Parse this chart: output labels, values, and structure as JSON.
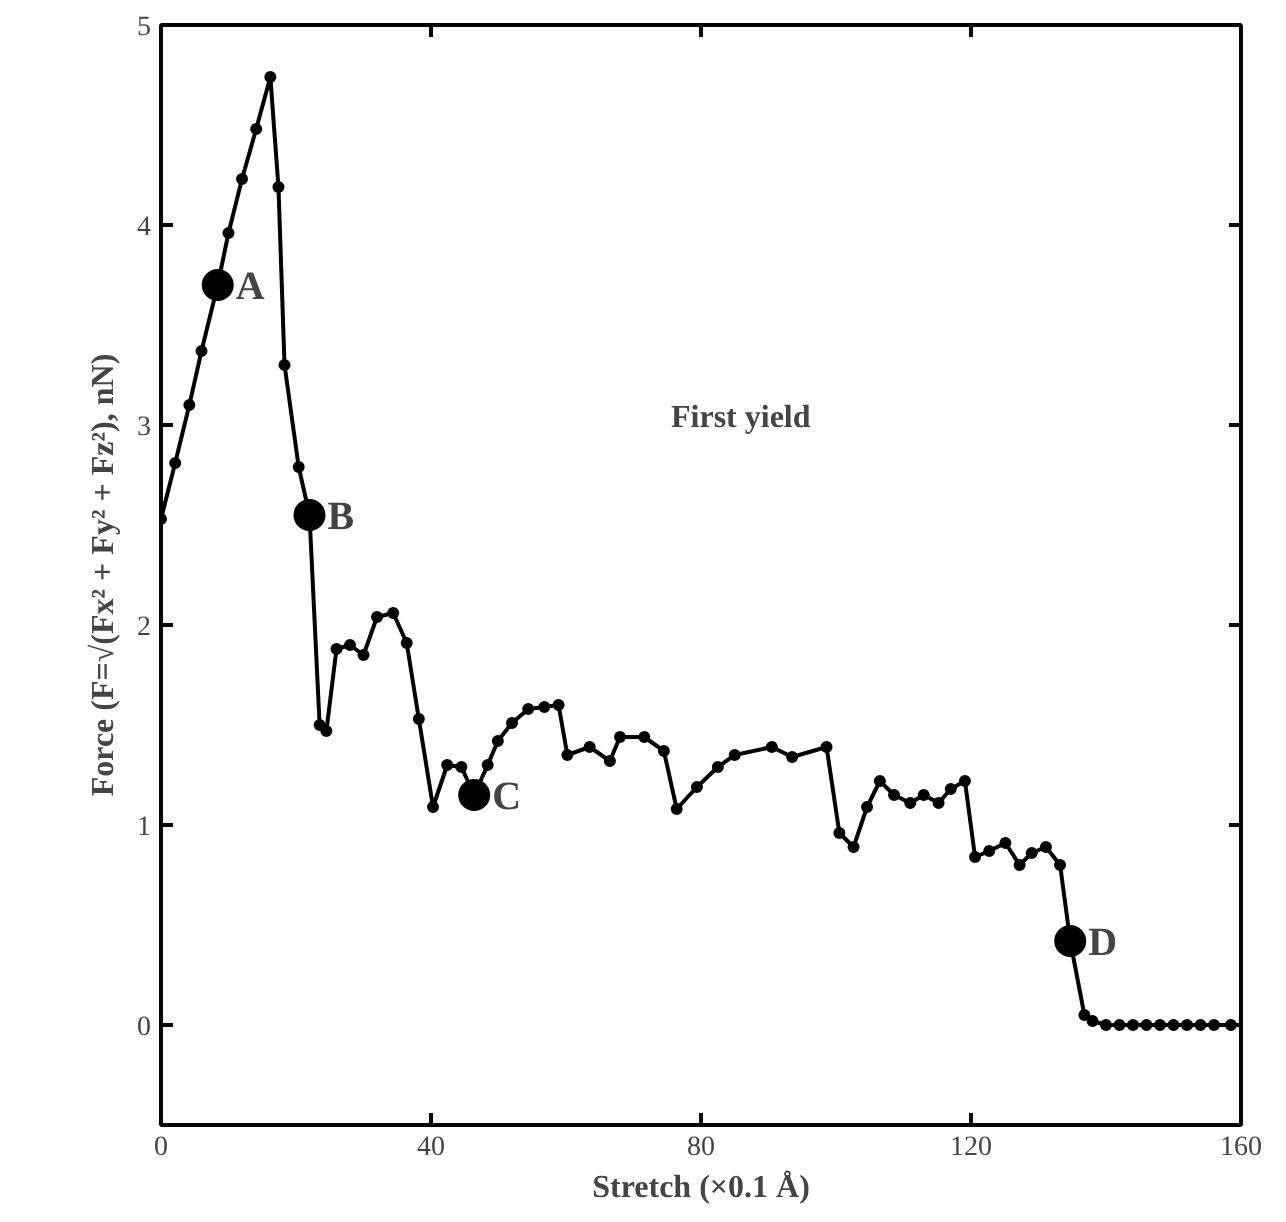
{
  "chart_data": {
    "type": "line",
    "xlabel": "Stretch (×0.1 Å)",
    "ylabel": "Force (F=√(Fx² + Fy² + Fz²), nN)",
    "xlim": [
      0,
      160
    ],
    "xticks": [
      0,
      40,
      80,
      120,
      160
    ],
    "ylim": [
      -0.5,
      5
    ],
    "yticks": [
      0,
      1,
      2,
      3,
      4,
      5
    ],
    "grid": false,
    "series": [
      {
        "type": "line",
        "color": "#000000",
        "marker": "circle",
        "line_style": "solid",
        "x": [
          0,
          2.1,
          4.2,
          6,
          8.4,
          10,
          12,
          14.1,
          16.2,
          17.4,
          18.3,
          20.4,
          22,
          23.5,
          24.5,
          26,
          28,
          30,
          32,
          34.4,
          36.4,
          38.2,
          40.3,
          42.4,
          44.5,
          46.4,
          48.4,
          49.9,
          52,
          54.4,
          56.8,
          58.9,
          60.2,
          63.5,
          66.5,
          68,
          71.6,
          74.5,
          76.4,
          79.4,
          82.5,
          85,
          90.5,
          93.5,
          98.6,
          100.5,
          102.6,
          104.6,
          106.5,
          108.6,
          111,
          113,
          115.2,
          117,
          119.1,
          120.6,
          122.7,
          125.1,
          127.2,
          129,
          131.1,
          133.2,
          134.7,
          136.8,
          138,
          140,
          142,
          144,
          146,
          148,
          150,
          152,
          154,
          156,
          158.5
        ],
        "values": [
          2.53,
          2.81,
          3.1,
          3.37,
          3.7,
          3.96,
          4.23,
          4.48,
          4.74,
          4.19,
          3.3,
          2.79,
          2.55,
          1.5,
          1.47,
          1.88,
          1.9,
          1.85,
          2.04,
          2.06,
          1.91,
          1.53,
          1.09,
          1.3,
          1.29,
          1.15,
          1.3,
          1.42,
          1.51,
          1.58,
          1.59,
          1.6,
          1.35,
          1.39,
          1.32,
          1.44,
          1.44,
          1.37,
          1.08,
          1.19,
          1.29,
          1.35,
          1.39,
          1.34,
          1.39,
          0.96,
          0.89,
          1.09,
          1.22,
          1.15,
          1.11,
          1.15,
          1.11,
          1.18,
          1.22,
          0.84,
          0.87,
          0.91,
          0.8,
          0.86,
          0.89,
          0.8,
          0.42,
          0.05,
          0.02,
          0,
          0,
          0,
          0,
          0,
          0,
          0,
          0,
          0,
          0
        ]
      },
      {
        "type": "scatter",
        "color": "#000000",
        "marker": "circle",
        "x": [
          8.4,
          22,
          46.4,
          134.7
        ],
        "values": [
          3.7,
          2.55,
          1.15,
          0.42
        ]
      }
    ],
    "annotations": [
      {
        "text": "A",
        "x": 8.4,
        "y": 3.7
      },
      {
        "text": "B",
        "x": 22,
        "y": 2.55
      },
      {
        "text": "C",
        "x": 46.4,
        "y": 1.15
      },
      {
        "text": "D",
        "x": 134.7,
        "y": 0.42
      },
      "First yield"
    ]
  }
}
